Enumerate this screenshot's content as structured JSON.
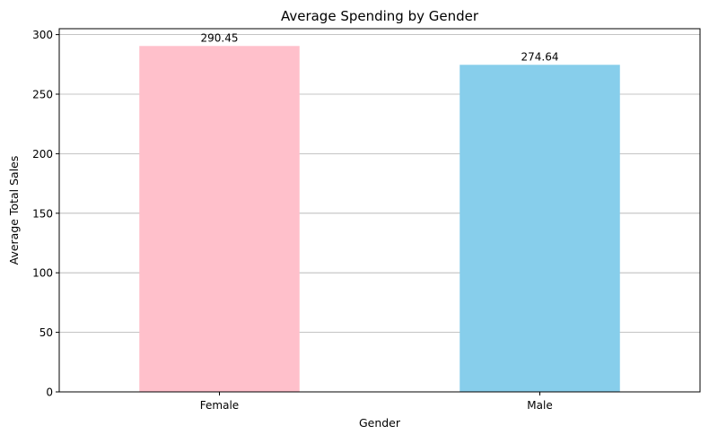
{
  "chart_data": {
    "type": "bar",
    "title": "Average Spending by Gender",
    "xlabel": "Gender",
    "ylabel": "Average Total Sales",
    "categories": [
      "Female",
      "Male"
    ],
    "values": [
      290.45,
      274.64
    ],
    "data_labels": [
      "290.45",
      "274.64"
    ],
    "colors": [
      "#ffc0cb",
      "#87ceeb"
    ],
    "ylim": [
      0,
      304.97
    ],
    "yticks": [
      0,
      50,
      100,
      150,
      200,
      250,
      300
    ],
    "ytick_labels": [
      "0",
      "50",
      "100",
      "150",
      "200",
      "250",
      "300"
    ],
    "grid": "horizontal",
    "legend": "none"
  }
}
